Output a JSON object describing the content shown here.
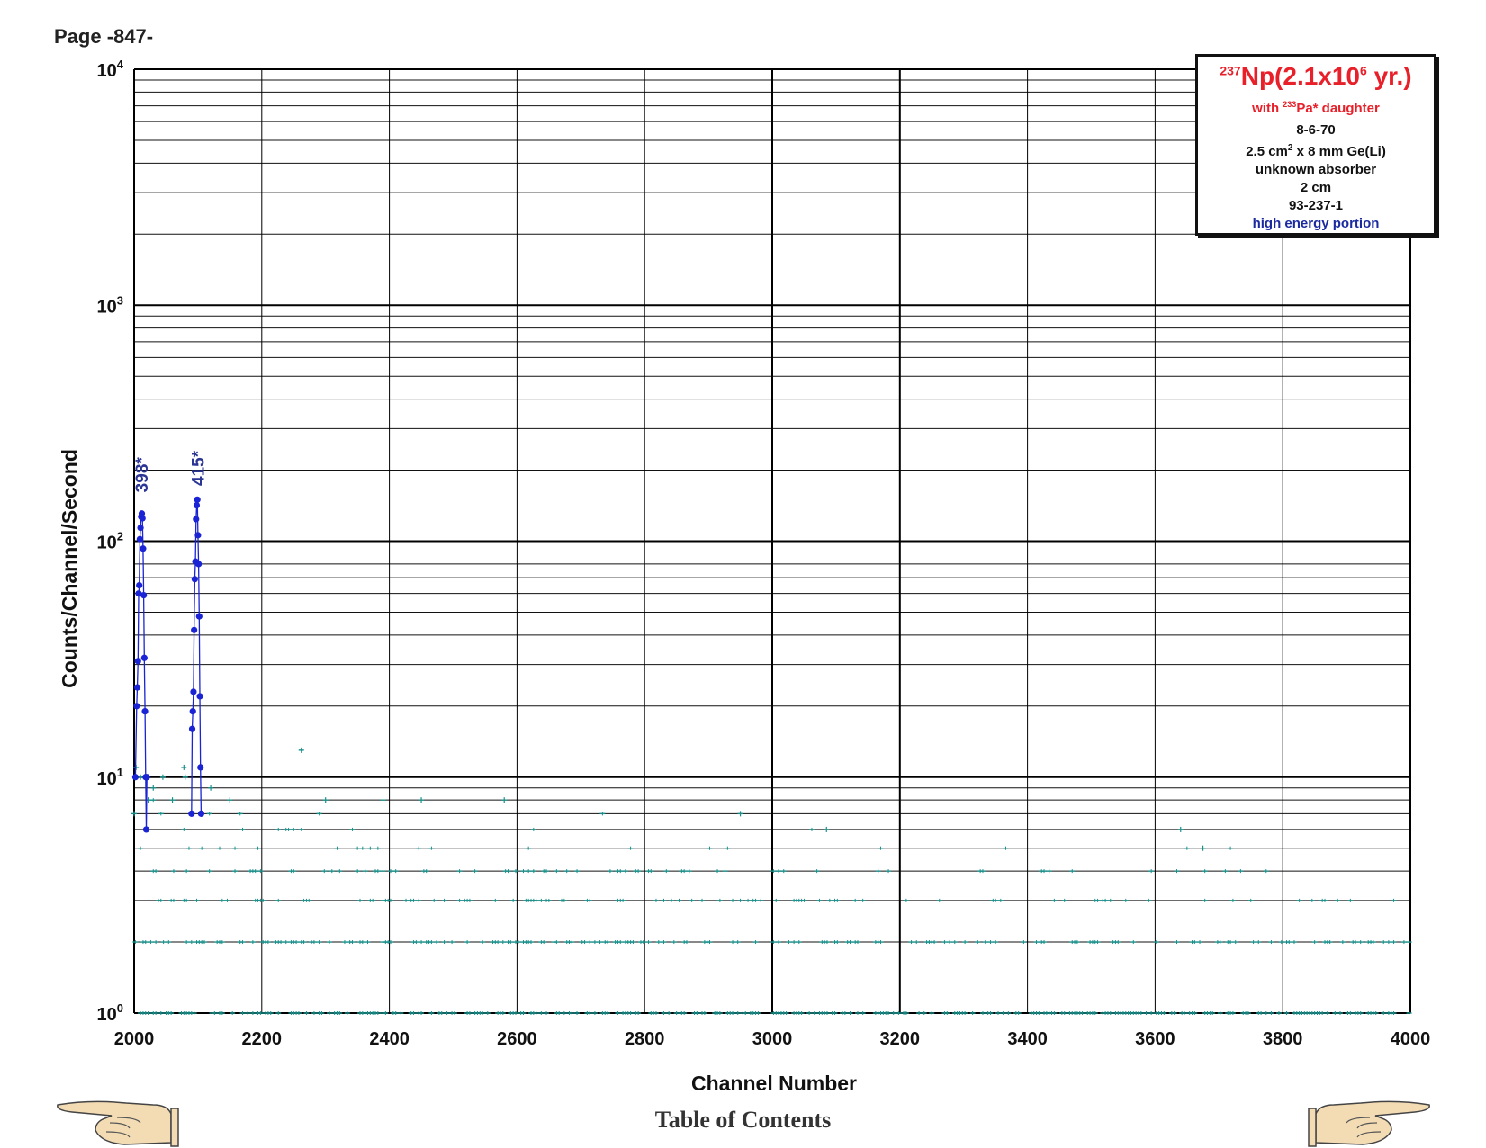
{
  "page": {
    "label": "Page -847-"
  },
  "legend": {
    "title_mass": "237",
    "title_element": "Np(2.1x10",
    "title_exp": "6",
    "title_tail": " yr.)",
    "daughter_prefix": "with ",
    "daughter_mass": "233",
    "daughter_tail": "Pa* daughter",
    "date": "8-6-70",
    "detector_pre": "2.5 cm",
    "detector_sup": "2",
    "detector_post": " x 8 mm Ge(Li)",
    "absorber": "unknown absorber",
    "distance": "2 cm",
    "spectrum_id": "93-237-1",
    "portion": "high energy portion"
  },
  "footer": {
    "toc": "Table of Contents"
  },
  "icons": {
    "left": "pointing-hand-left-icon",
    "right": "pointing-hand-right-icon"
  },
  "colors": {
    "peak": "#1a24d4",
    "background": "#1a8f8a",
    "peak_label": "#2b3594",
    "title": "#e8202a"
  },
  "chart_data": {
    "type": "scatter",
    "xlabel": "Channel Number",
    "ylabel": "Counts/Channel/Second",
    "xlim": [
      2000,
      4000
    ],
    "ylim": [
      1,
      10000
    ],
    "yscale": "log",
    "x_ticks": [
      "2000",
      "2200",
      "2400",
      "2600",
      "2800",
      "3000",
      "3200",
      "3400",
      "3600",
      "3800",
      "4000"
    ],
    "y_ticks": [
      {
        "base": "10",
        "exp": "0"
      },
      {
        "base": "10",
        "exp": "1"
      },
      {
        "base": "10",
        "exp": "2"
      },
      {
        "base": "10",
        "exp": "3"
      },
      {
        "base": "10",
        "exp": "4"
      }
    ],
    "grid": true,
    "annotations": [
      {
        "text": "398*",
        "x": 2013,
        "y": 150
      },
      {
        "text": "415*",
        "x": 2101,
        "y": 160
      }
    ],
    "series": [
      {
        "type": "line+markers",
        "points": [
          [
            2002,
            10
          ],
          [
            2004,
            20
          ],
          [
            2005,
            24
          ],
          [
            2006,
            31
          ],
          [
            2007,
            60
          ],
          [
            2008,
            65
          ],
          [
            2009,
            102
          ],
          [
            2010,
            114
          ],
          [
            2011,
            127
          ],
          [
            2012,
            131
          ],
          [
            2013,
            125
          ],
          [
            2014,
            93
          ],
          [
            2015,
            59
          ],
          [
            2016,
            32
          ],
          [
            2017,
            19
          ],
          [
            2018,
            10
          ],
          [
            2019,
            6
          ],
          [
            2020,
            10
          ]
        ]
      },
      {
        "type": "line+markers",
        "points": [
          [
            2090,
            7
          ],
          [
            2091,
            16
          ],
          [
            2092,
            19
          ],
          [
            2093,
            23
          ],
          [
            2094,
            42
          ],
          [
            2095,
            69
          ],
          [
            2096,
            82
          ],
          [
            2097,
            124
          ],
          [
            2098,
            142
          ],
          [
            2099,
            150
          ],
          [
            2100,
            106
          ],
          [
            2101,
            80
          ],
          [
            2102,
            48
          ],
          [
            2103,
            22
          ],
          [
            2104,
            11
          ],
          [
            2105,
            7
          ]
        ]
      },
      {
        "type": "scatter",
        "note_levels": [
          1,
          2,
          3,
          4,
          5,
          6,
          7,
          8,
          9,
          10,
          13
        ],
        "points": [
          [
            2000,
            7
          ],
          [
            2003,
            11
          ],
          [
            2010,
            10
          ],
          [
            2022,
            8
          ],
          [
            2030,
            9
          ],
          [
            2045,
            10
          ],
          [
            2060,
            8
          ],
          [
            2078,
            11
          ],
          [
            2080,
            10
          ],
          [
            2120,
            9
          ],
          [
            2150,
            8
          ],
          [
            2262,
            13
          ],
          [
            2300,
            8
          ],
          [
            2450,
            8
          ],
          [
            2580,
            8
          ],
          [
            2950,
            7
          ],
          [
            3085,
            6
          ],
          [
            3640,
            6
          ],
          [
            3675,
            5
          ]
        ]
      }
    ]
  }
}
